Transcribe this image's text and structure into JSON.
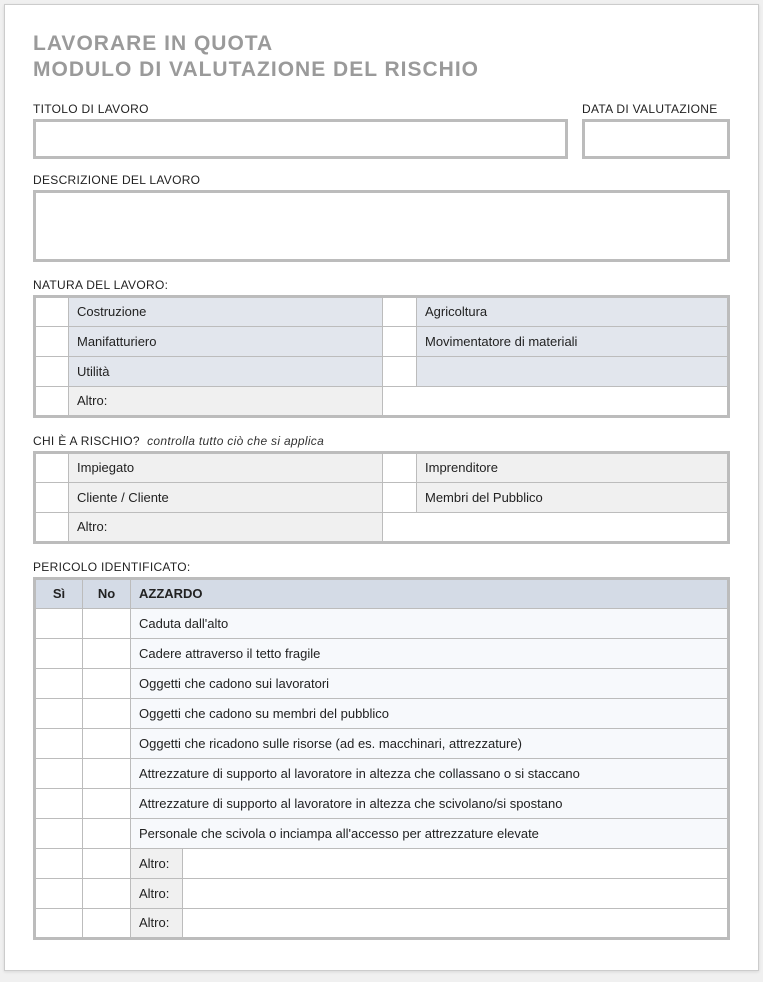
{
  "title_line1": "LAVORARE IN QUOTA",
  "title_line2": "MODULO DI VALUTAZIONE DEL RISCHIO",
  "labels": {
    "job_title": "TITOLO DI LAVORO",
    "eval_date": "DATA DI VALUTAZIONE",
    "job_desc": "DESCRIZIONE DEL LAVORO",
    "nature": "NATURA DEL LAVORO:",
    "who_at_risk": "CHI È A RISCHIO?",
    "who_hint": "controlla tutto ciò che si applica",
    "hazard_ident": "PERICOLO IDENTIFICATO:",
    "other": "Altro:"
  },
  "nature": {
    "r0c0": "Costruzione",
    "r0c1": "Agricoltura",
    "r1c0": "Manifatturiero",
    "r1c1": "Movimentatore di materiali",
    "r2c0": "Utilità",
    "r2c1": ""
  },
  "risk": {
    "r0c0": "Impiegato",
    "r0c1": "Imprenditore",
    "r1c0": "Cliente / Cliente",
    "r1c1": "Membri del Pubblico"
  },
  "hazard": {
    "col_si": "Sì",
    "col_no": "No",
    "col_haz": "AZZARDO",
    "rows": {
      "0": "Caduta dall'alto",
      "1": "Cadere attraverso il tetto fragile",
      "2": "Oggetti che cadono sui lavoratori",
      "3": "Oggetti che cadono su membri del pubblico",
      "4": "Oggetti che ricadono sulle risorse (ad es. macchinari, attrezzature)",
      "5": "Attrezzature di supporto al lavoratore in altezza che collassano o si staccano",
      "6": "Attrezzature di supporto al lavoratore in altezza che scivolano/si spostano",
      "7": "Personale che scivola o inciampa all'accesso per attrezzature elevate"
    }
  }
}
